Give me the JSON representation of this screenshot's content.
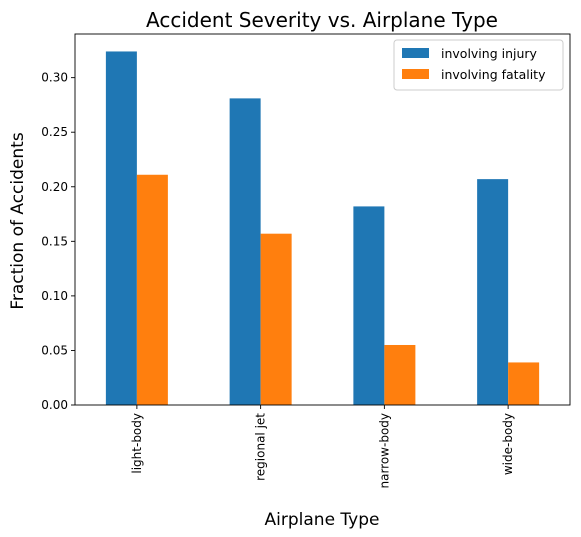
{
  "chart_data": {
    "type": "bar",
    "title": "Accident Severity vs. Airplane Type",
    "xlabel": "Airplane Type",
    "ylabel": "Fraction of Accidents",
    "categories": [
      "light-body",
      "regional jet",
      "narrow-body",
      "wide-body"
    ],
    "series": [
      {
        "name": "involving injury",
        "color": "#1f77b4",
        "values": [
          0.324,
          0.281,
          0.182,
          0.207
        ]
      },
      {
        "name": "involving fatality",
        "color": "#ff7f0e",
        "values": [
          0.211,
          0.157,
          0.055,
          0.039
        ]
      }
    ],
    "ylim": [
      0,
      0.34
    ],
    "yticks": [
      "0.00",
      "0.05",
      "0.10",
      "0.15",
      "0.20",
      "0.25",
      "0.30"
    ],
    "grid": false,
    "legend_position": "top-right"
  }
}
